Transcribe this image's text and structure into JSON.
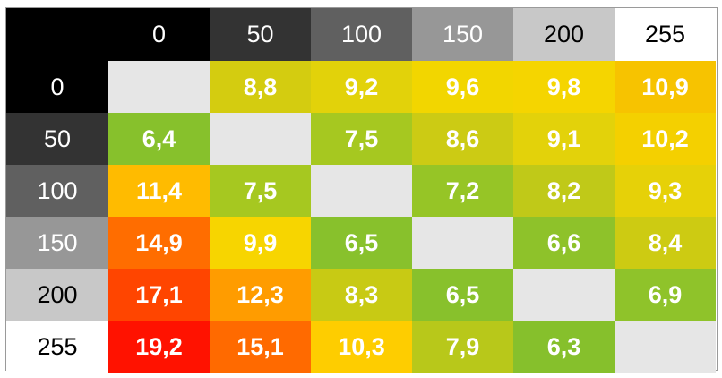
{
  "chart_data": {
    "type": "heatmap",
    "title": "",
    "column_labels": [
      "0",
      "50",
      "100",
      "150",
      "200",
      "255"
    ],
    "row_labels": [
      "0",
      "50",
      "100",
      "150",
      "200",
      "255"
    ],
    "values": [
      [
        null,
        "8,8",
        "9,2",
        "9,6",
        "9,8",
        "10,9"
      ],
      [
        "6,4",
        null,
        "7,5",
        "8,6",
        "9,1",
        "10,2"
      ],
      [
        "11,4",
        "7,5",
        null,
        "7,2",
        "8,2",
        "9,3"
      ],
      [
        "14,9",
        "9,9",
        "6,5",
        null,
        "6,6",
        "8,4"
      ],
      [
        "17,1",
        "12,3",
        "8,3",
        "6,5",
        null,
        "6,9"
      ],
      [
        "19,2",
        "15,1",
        "10,3",
        "7,9",
        "6,3",
        null
      ]
    ],
    "colors": {
      "header_backgrounds": [
        "#000000",
        "#333333",
        "#606060",
        "#979797",
        "#c8c8c8",
        "#ffffff"
      ],
      "header_text": [
        "#ffffff",
        "#ffffff",
        "#ffffff",
        "#ffffff",
        "#000000",
        "#000000"
      ],
      "corner_background": "#000000",
      "diagonal_background": "#e6e6e6",
      "value_text": "#ffffff",
      "cells": [
        [
          null,
          "#d4cc10",
          "#e2d20a",
          "#f2d600",
          "#f5d500",
          "#f7c300"
        ],
        [
          "#87c12c",
          null,
          "#a6c820",
          "#cccb14",
          "#e3d20a",
          "#f4d000"
        ],
        [
          "#ffbb00",
          "#a6c820",
          null,
          "#96c526",
          "#c0c918",
          "#e6d108"
        ],
        [
          "#ff6d00",
          "#f7d500",
          "#88c12c",
          null,
          "#8ec22a",
          "#cdcb12"
        ],
        [
          "#ff4500",
          "#ff9c00",
          "#c8ca14",
          "#88c12c",
          null,
          "#8fc32a"
        ],
        [
          "#ff1200",
          "#ff6a00",
          "#fecd00",
          "#b8c81a",
          "#86c02c",
          null
        ]
      ]
    },
    "grid": false,
    "legend": "none"
  }
}
